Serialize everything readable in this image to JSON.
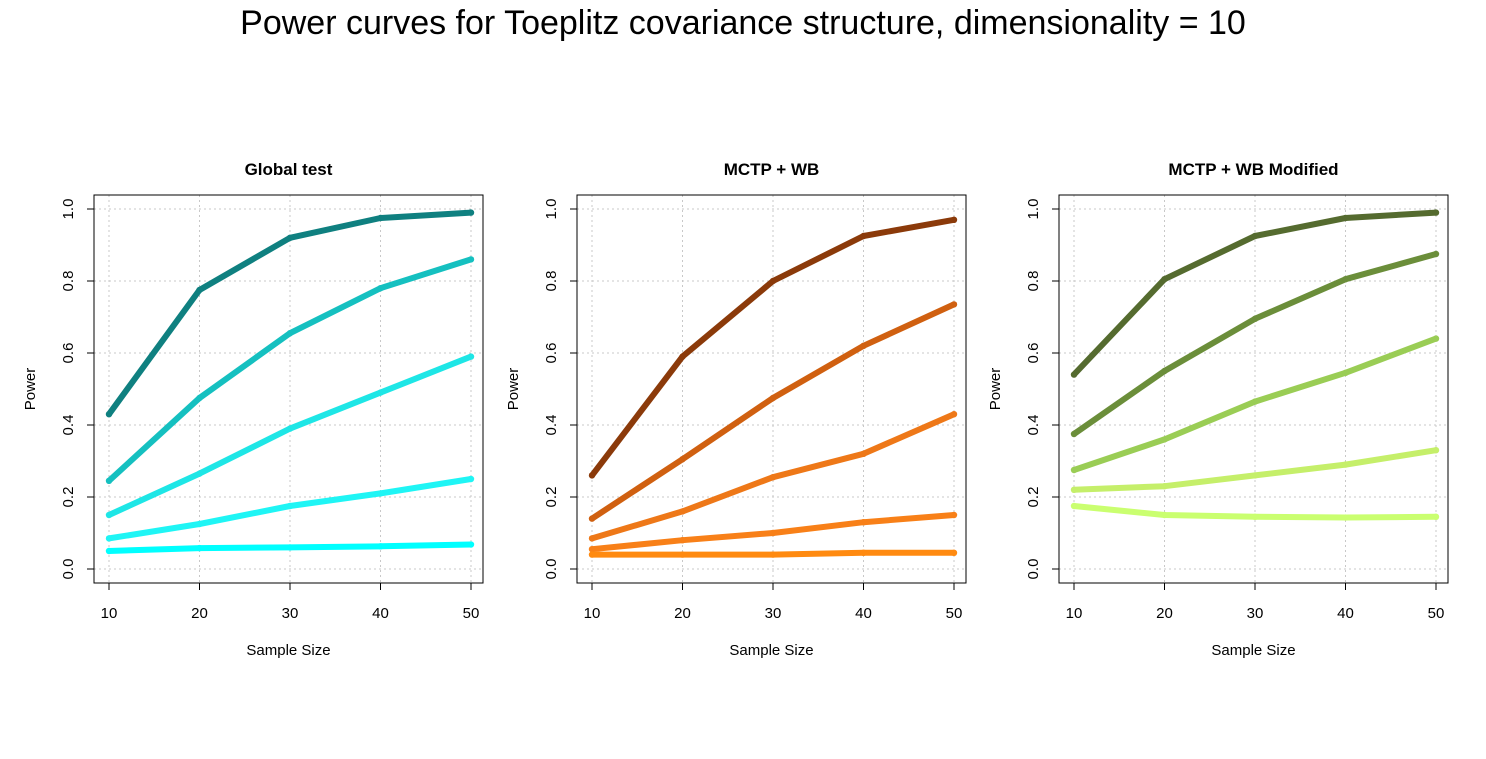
{
  "figure": {
    "title": "Power curves for Toeplitz covariance structure, dimensionality = 10"
  },
  "chart_data": [
    {
      "type": "line",
      "title": "Global test",
      "xlabel": "Sample Size",
      "ylabel": "Power",
      "x": [
        10,
        20,
        30,
        40,
        50
      ],
      "xlim": [
        10,
        50
      ],
      "ylim": [
        0,
        1
      ],
      "xticks": [
        10,
        20,
        30,
        40,
        50
      ],
      "yticks": [
        0.0,
        0.2,
        0.4,
        0.6,
        0.8,
        1.0
      ],
      "ytick_labels": [
        "0.0",
        "0.2",
        "0.4",
        "0.6",
        "0.8",
        "1.0"
      ],
      "grid": true,
      "series": [
        {
          "color": "#0f8080",
          "values": [
            0.43,
            0.775,
            0.92,
            0.975,
            0.99
          ]
        },
        {
          "color": "#15c0c0",
          "values": [
            0.245,
            0.475,
            0.655,
            0.78,
            0.86
          ]
        },
        {
          "color": "#1ee6e6",
          "values": [
            0.15,
            0.265,
            0.39,
            0.49,
            0.59
          ]
        },
        {
          "color": "#1ff5f5",
          "values": [
            0.085,
            0.125,
            0.175,
            0.21,
            0.25
          ]
        },
        {
          "color": "#00ffff",
          "values": [
            0.05,
            0.058,
            0.06,
            0.063,
            0.068
          ]
        }
      ]
    },
    {
      "type": "line",
      "title": "MCTP + WB",
      "xlabel": "Sample Size",
      "ylabel": "Power",
      "x": [
        10,
        20,
        30,
        40,
        50
      ],
      "xlim": [
        10,
        50
      ],
      "ylim": [
        0,
        1
      ],
      "xticks": [
        10,
        20,
        30,
        40,
        50
      ],
      "yticks": [
        0.0,
        0.2,
        0.4,
        0.6,
        0.8,
        1.0
      ],
      "ytick_labels": [
        "0.0",
        "0.2",
        "0.4",
        "0.6",
        "0.8",
        "1.0"
      ],
      "grid": true,
      "series": [
        {
          "color": "#8b3a0a",
          "values": [
            0.26,
            0.59,
            0.8,
            0.925,
            0.97
          ]
        },
        {
          "color": "#d06010",
          "values": [
            0.14,
            0.305,
            0.475,
            0.62,
            0.735
          ]
        },
        {
          "color": "#ee7818",
          "values": [
            0.085,
            0.16,
            0.255,
            0.32,
            0.43
          ]
        },
        {
          "color": "#f88018",
          "values": [
            0.055,
            0.08,
            0.1,
            0.13,
            0.15
          ]
        },
        {
          "color": "#ff8a10",
          "values": [
            0.04,
            0.04,
            0.04,
            0.045,
            0.045
          ]
        }
      ]
    },
    {
      "type": "line",
      "title": "MCTP + WB Modified",
      "xlabel": "Sample Size",
      "ylabel": "Power",
      "x": [
        10,
        20,
        30,
        40,
        50
      ],
      "xlim": [
        10,
        50
      ],
      "ylim": [
        0,
        1
      ],
      "xticks": [
        10,
        20,
        30,
        40,
        50
      ],
      "yticks": [
        0.0,
        0.2,
        0.4,
        0.6,
        0.8,
        1.0
      ],
      "ytick_labels": [
        "0.0",
        "0.2",
        "0.4",
        "0.6",
        "0.8",
        "1.0"
      ],
      "grid": true,
      "series": [
        {
          "color": "#556b2f",
          "values": [
            0.54,
            0.805,
            0.925,
            0.975,
            0.99
          ]
        },
        {
          "color": "#6b8e3a",
          "values": [
            0.375,
            0.55,
            0.695,
            0.805,
            0.875
          ]
        },
        {
          "color": "#9acd55",
          "values": [
            0.275,
            0.36,
            0.465,
            0.545,
            0.64
          ]
        },
        {
          "color": "#c5ef6a",
          "values": [
            0.22,
            0.23,
            0.26,
            0.29,
            0.33
          ]
        },
        {
          "color": "#caff70",
          "values": [
            0.175,
            0.15,
            0.145,
            0.143,
            0.145
          ]
        }
      ]
    }
  ]
}
